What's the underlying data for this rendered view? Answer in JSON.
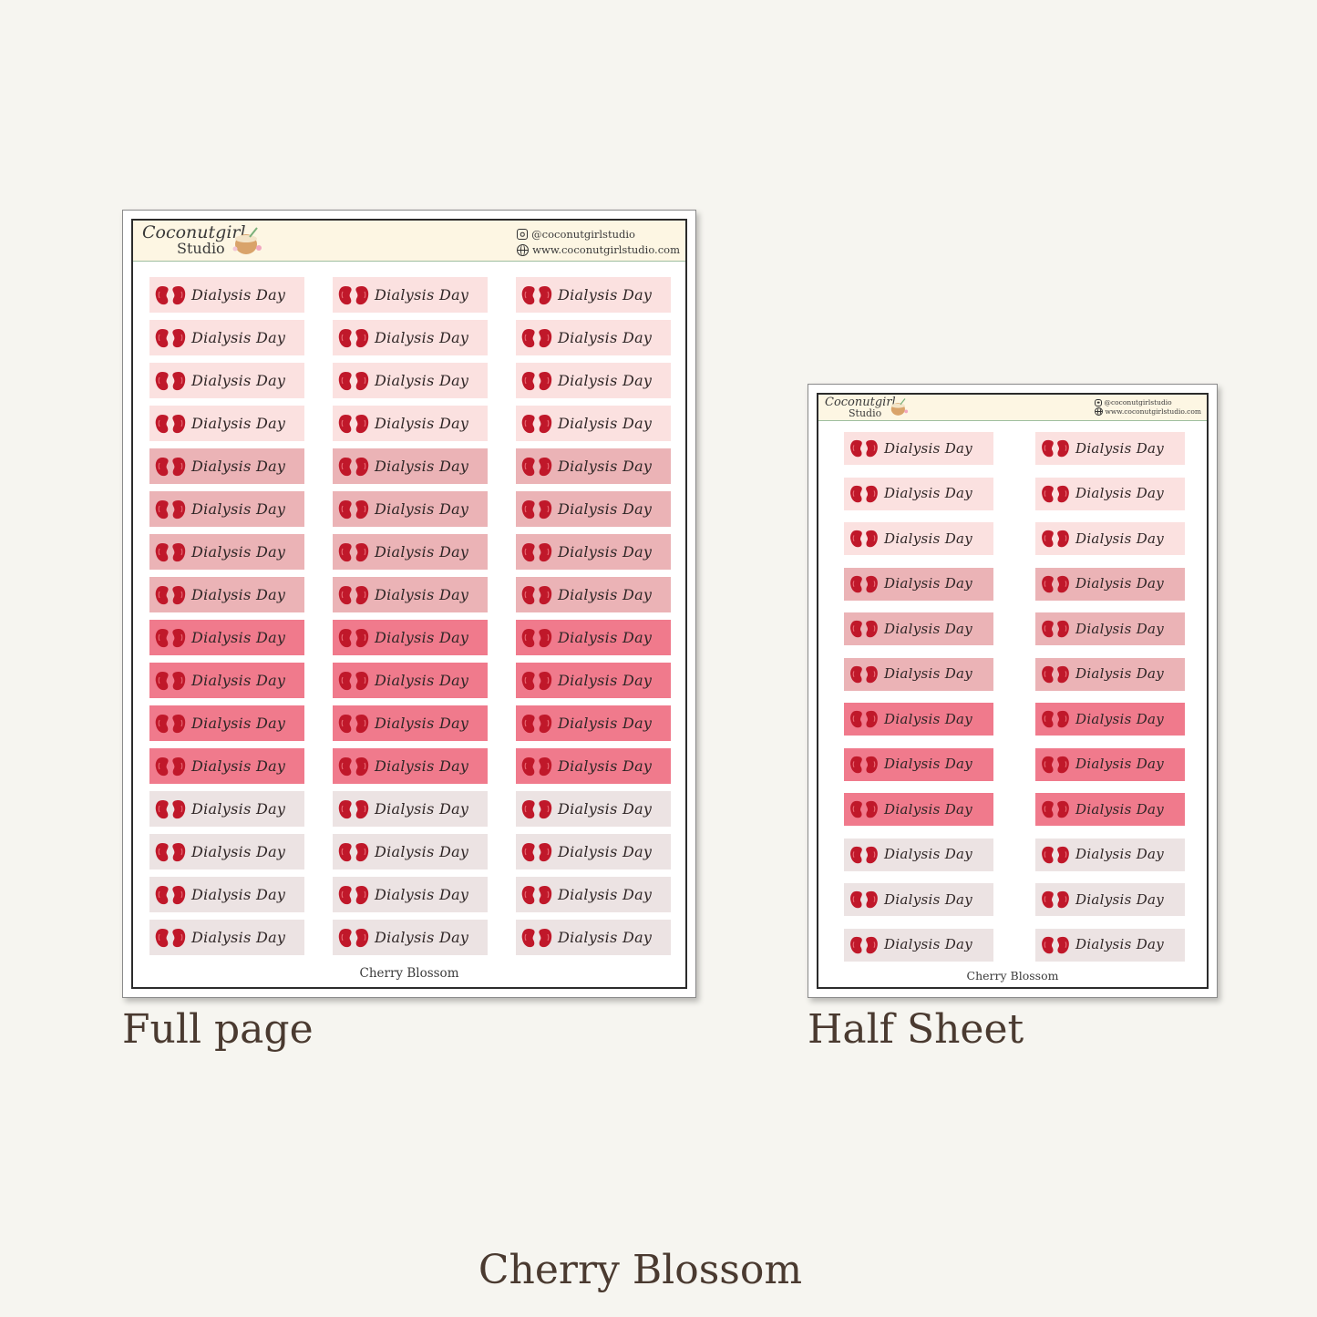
{
  "brand": {
    "line1": "Coconutgirl",
    "line2": "Studio"
  },
  "social": {
    "instagram": "@coconutgirlstudio",
    "website": "www.coconutgirlstudio.com"
  },
  "label_text": "Dialysis Day",
  "theme_name": "Cherry Blossom",
  "captions": {
    "full": "Full page",
    "half": "Half Sheet",
    "bottom": "Cherry Blossom"
  },
  "icons": {
    "label_icon": "kidneys-icon",
    "header_icon": "coconut-cup-icon",
    "instagram": "instagram-icon",
    "web": "globe-icon"
  },
  "colors": {
    "background": "#f6f5f0",
    "header": "#fdf6e3",
    "kidney": "#c0182a",
    "shades": [
      "#fbe1e0",
      "#ebb3b6",
      "#f07a8c",
      "#ece3e3"
    ]
  },
  "full_page": {
    "columns": 3,
    "shade_per_row": [
      0,
      0,
      0,
      0,
      1,
      1,
      1,
      1,
      2,
      2,
      2,
      2,
      3,
      3,
      3,
      3
    ]
  },
  "half_sheet": {
    "columns": 2,
    "shade_per_row": [
      0,
      0,
      0,
      1,
      1,
      1,
      2,
      2,
      2,
      3,
      3,
      3
    ]
  }
}
